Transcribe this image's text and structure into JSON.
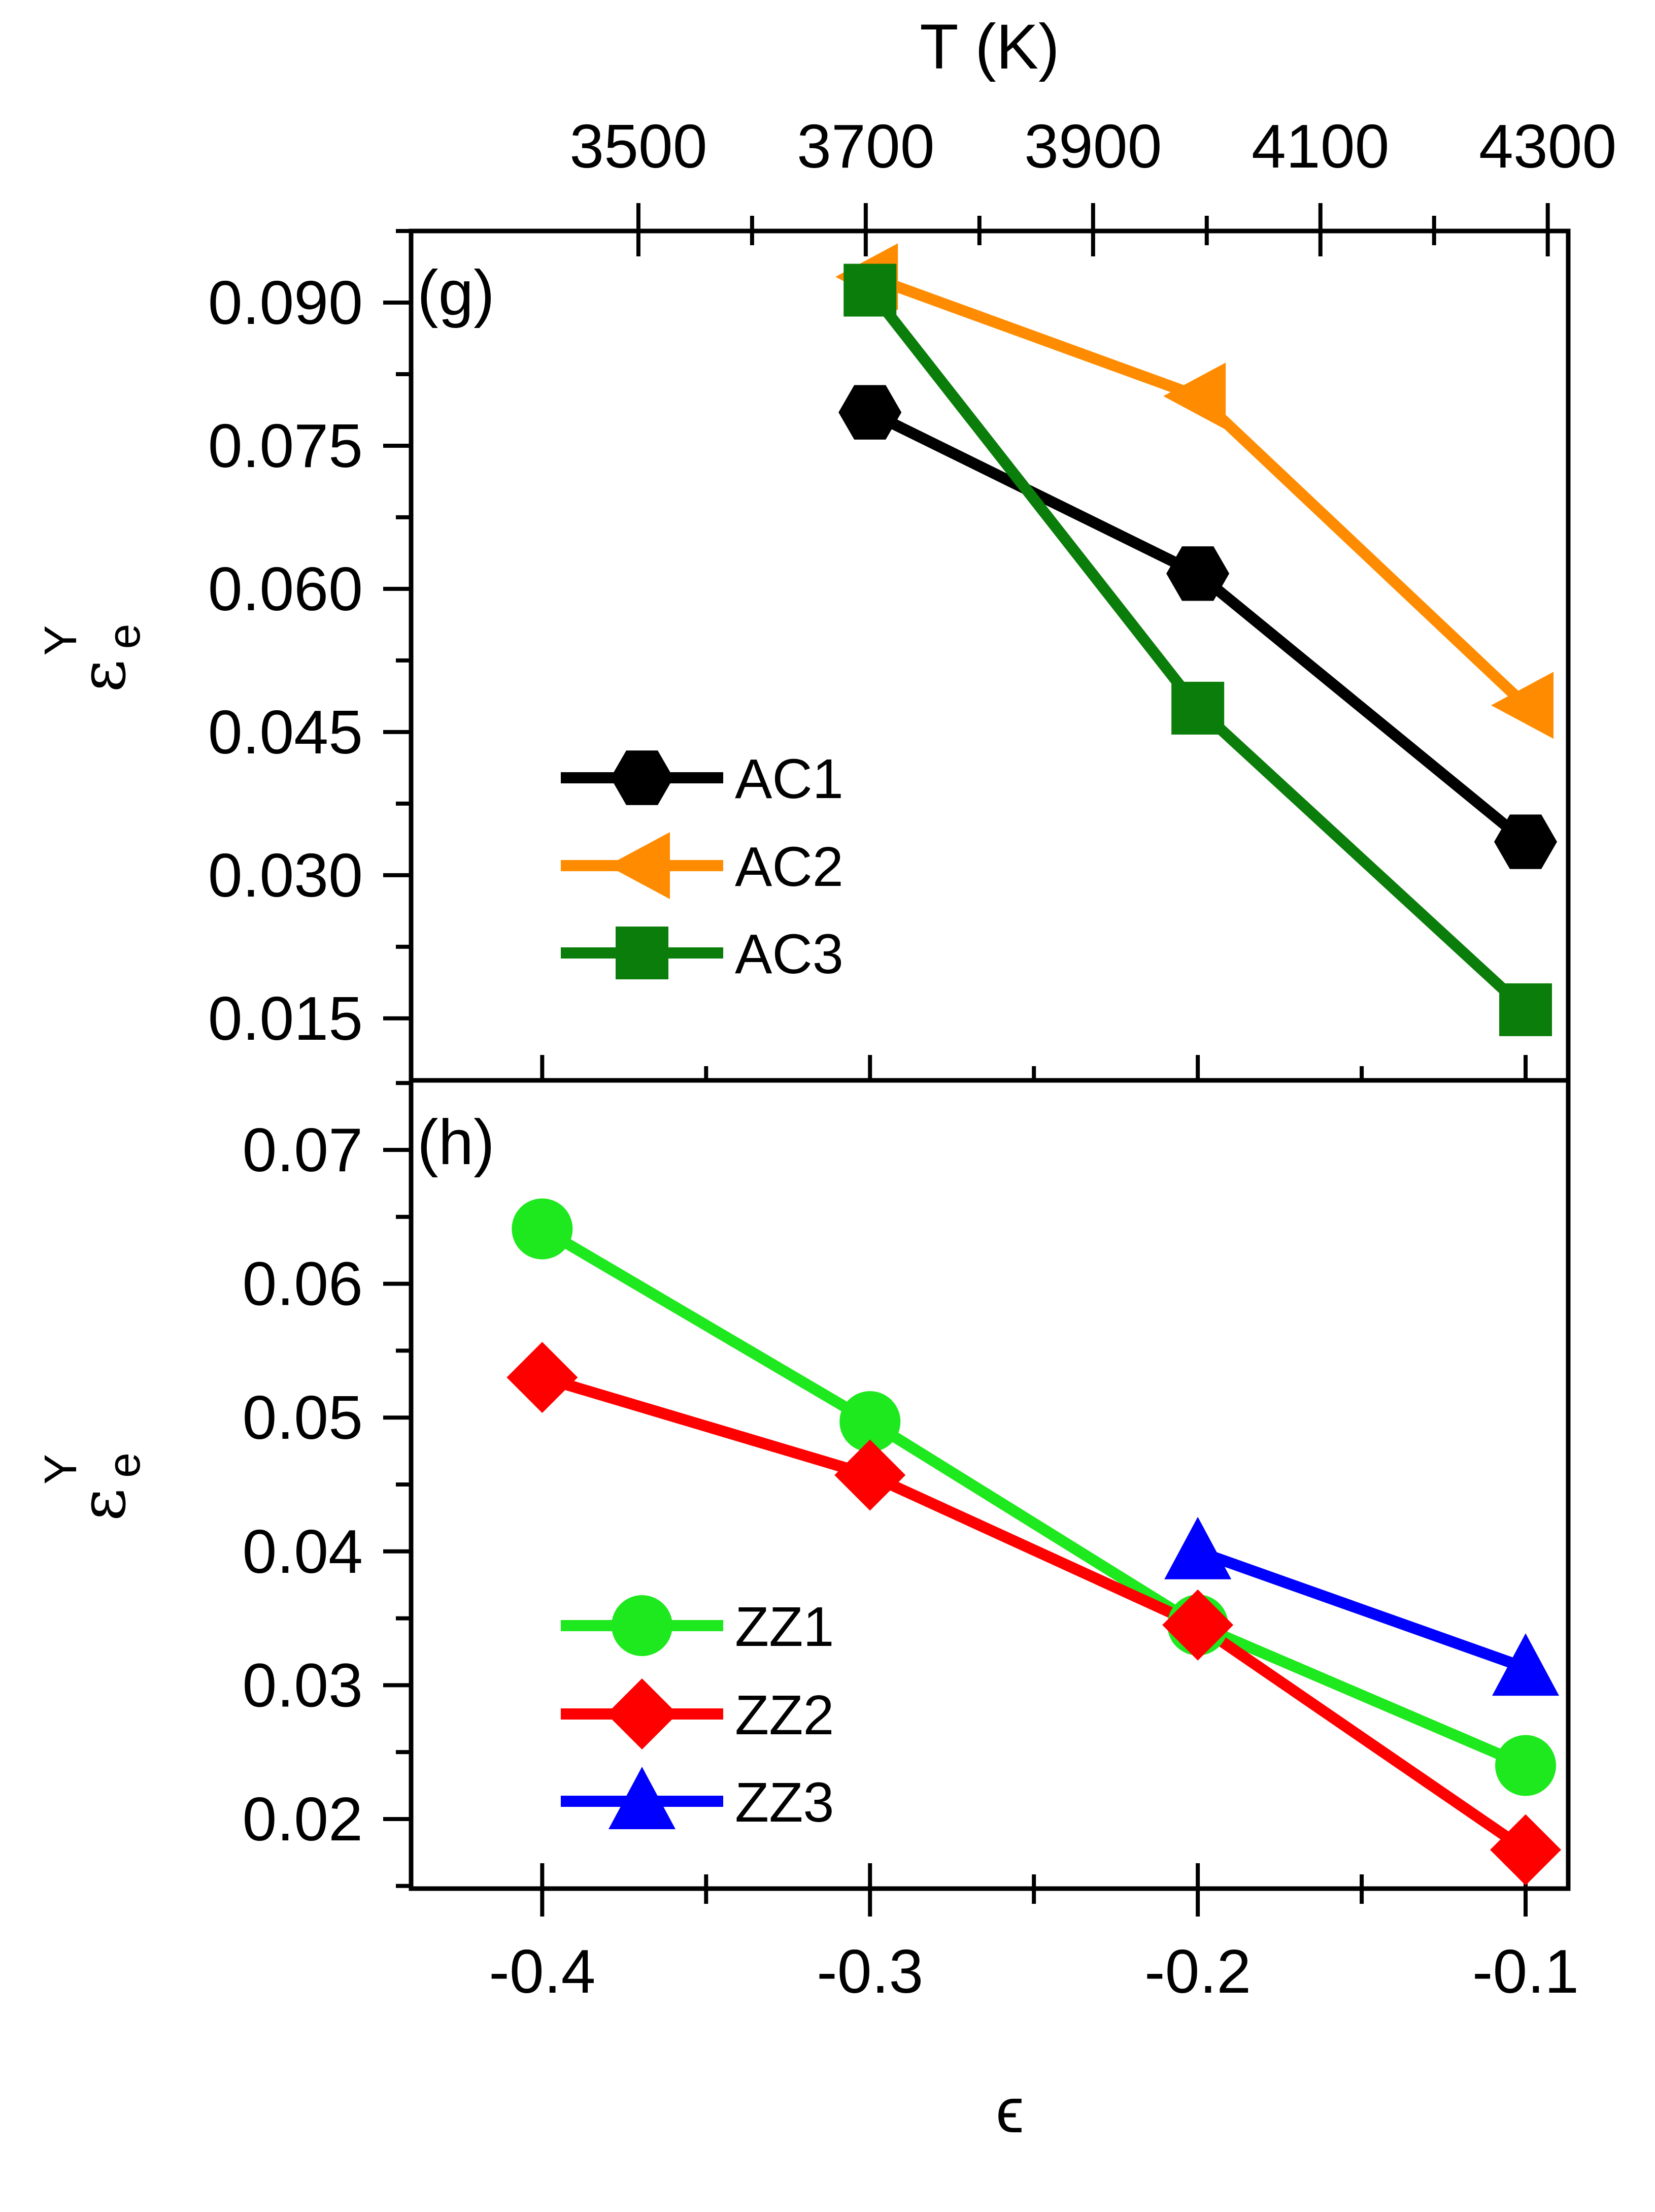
{
  "chart_data": [
    {
      "type": "line",
      "panel_label": "(g)",
      "xlabel": "ϵ",
      "ylabel": {
        "main": "ε",
        "sub": "e",
        "sup": "Y"
      },
      "top_axis": {
        "label": "T (K)",
        "ticks": [
          3500,
          3700,
          3900,
          4100,
          4300
        ],
        "tick_labels": [
          "3500",
          "3700",
          "3900",
          "4100",
          "4300"
        ]
      },
      "x_ticks": [
        -0.4,
        -0.3,
        -0.2,
        -0.1
      ],
      "x_tick_labels": [
        "-0.4",
        "-0.3",
        "-0.2",
        "-0.1"
      ],
      "xlim": [
        -0.44,
        -0.087
      ],
      "ylim": [
        0.0085,
        0.0975
      ],
      "y_ticks": [
        0.015,
        0.03,
        0.045,
        0.06,
        0.075,
        0.09
      ],
      "y_tick_labels": [
        "0.015",
        "0.030",
        "0.045",
        "0.060",
        "0.075",
        "0.090"
      ],
      "legend": "center-left",
      "series": [
        {
          "name": "AC1",
          "color": "#000000",
          "marker": "hexagon",
          "x": [
            -0.3,
            -0.2,
            -0.1
          ],
          "y": [
            0.0785,
            0.0616,
            0.0335
          ]
        },
        {
          "name": "AC2",
          "color": "#ff8c00",
          "marker": "triangle-left",
          "x": [
            -0.3,
            -0.2,
            -0.1
          ],
          "y": [
            0.0927,
            0.0802,
            0.0478
          ]
        },
        {
          "name": "AC3",
          "color": "#0a7d0a",
          "marker": "square",
          "x": [
            -0.3,
            -0.2,
            -0.1
          ],
          "y": [
            0.0913,
            0.0475,
            0.0159
          ]
        }
      ]
    },
    {
      "type": "line",
      "panel_label": "(h)",
      "xlabel": "ϵ",
      "ylabel": {
        "main": "ε",
        "sub": "e",
        "sup": "Y"
      },
      "x_ticks": [
        -0.4,
        -0.3,
        -0.2,
        -0.1
      ],
      "x_tick_labels": [
        "-0.4",
        "-0.3",
        "-0.2",
        "-0.1"
      ],
      "xlim": [
        -0.44,
        -0.087
      ],
      "ylim": [
        0.0148,
        0.0752
      ],
      "y_ticks": [
        0.02,
        0.03,
        0.04,
        0.05,
        0.06,
        0.07
      ],
      "y_tick_labels": [
        "0.02",
        "0.03",
        "0.04",
        "0.05",
        "0.06",
        "0.07"
      ],
      "legend": "center-left",
      "series": [
        {
          "name": "ZZ1",
          "color": "#1ee81e",
          "marker": "circle",
          "x": [
            -0.4,
            -0.3,
            -0.2,
            -0.1
          ],
          "y": [
            0.0641,
            0.0497,
            0.0345,
            0.024
          ]
        },
        {
          "name": "ZZ2",
          "color": "#ff0000",
          "marker": "diamond",
          "x": [
            -0.4,
            -0.3,
            -0.2,
            -0.1
          ],
          "y": [
            0.053,
            0.0457,
            0.0345,
            0.0177
          ]
        },
        {
          "name": "ZZ3",
          "color": "#0000ff",
          "marker": "triangle-up",
          "x": [
            -0.2,
            -0.1
          ],
          "y": [
            0.04,
            0.0313
          ]
        }
      ]
    }
  ]
}
